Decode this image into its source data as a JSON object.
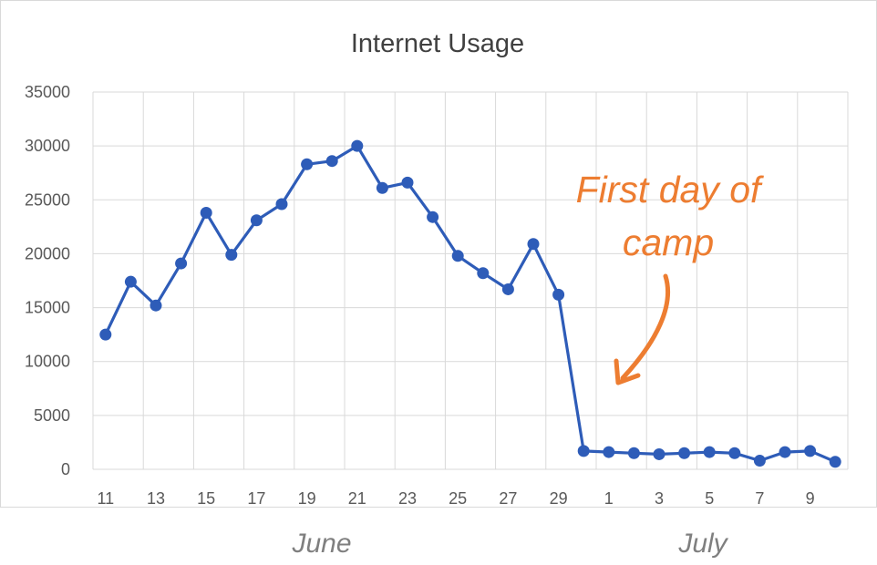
{
  "colors": {
    "series": "#2e5cb8",
    "grid": "#d9d9d9",
    "annotation": "#ed7d31"
  },
  "chart_data": {
    "type": "line",
    "title": "Internet Usage",
    "xlabel": "",
    "ylabel": "",
    "ylim": [
      0,
      35000
    ],
    "yticks": [
      "0",
      "5000",
      "10000",
      "15000",
      "20000",
      "25000",
      "30000",
      "35000"
    ],
    "x": [
      "Jun 11",
      "Jun 12",
      "Jun 13",
      "Jun 14",
      "Jun 15",
      "Jun 16",
      "Jun 17",
      "Jun 18",
      "Jun 19",
      "Jun 20",
      "Jun 21",
      "Jun 22",
      "Jun 23",
      "Jun 24",
      "Jun 25",
      "Jun 26",
      "Jun 27",
      "Jun 28",
      "Jun 29",
      "Jun 30",
      "Jul 1",
      "Jul 2",
      "Jul 3",
      "Jul 4",
      "Jul 5",
      "Jul 6",
      "Jul 7",
      "Jul 8",
      "Jul 9",
      "Jul 10"
    ],
    "xticks": [
      "11",
      "13",
      "15",
      "17",
      "19",
      "21",
      "23",
      "25",
      "27",
      "29",
      "1",
      "3",
      "5",
      "7",
      "9"
    ],
    "series": [
      {
        "values": [
          12500,
          17400,
          15200,
          19100,
          23800,
          19900,
          23100,
          24600,
          28300,
          28600,
          30000,
          26100,
          26600,
          23400,
          19800,
          18200,
          16700,
          20900,
          16200,
          1700,
          1600,
          1500,
          1400,
          1500,
          1600,
          1500,
          800,
          1600,
          1700,
          700
        ]
      }
    ],
    "month_labels": [
      "June",
      "July"
    ],
    "annotation": {
      "lines": [
        "First day of",
        "camp"
      ],
      "target": "Jul 1"
    },
    "grid": true,
    "legend": "none"
  }
}
